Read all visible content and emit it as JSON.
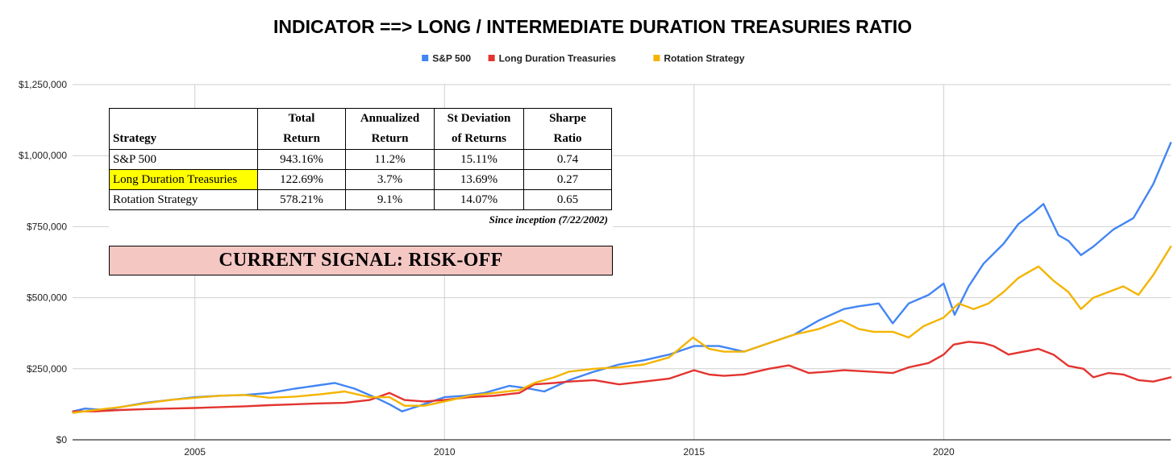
{
  "colors": {
    "sp500": "#4285f4",
    "long_duration": "#e3342f",
    "rotation": "#f4b400",
    "highlight": "#ffff00",
    "signal_bg": "#f4c7c3"
  },
  "chart_data": {
    "type": "line",
    "title": "INDICATOR ==> LONG / INTERMEDIATE DURATION TREASURIES RATIO",
    "xlabel": "",
    "ylabel": "",
    "xlim": [
      2002.55,
      2024.55
    ],
    "ylim": [
      0,
      1250000
    ],
    "x_ticks": [
      2005,
      2010,
      2015,
      2020
    ],
    "x_tick_labels": [
      "2005",
      "2010",
      "2015",
      "2020"
    ],
    "y_ticks": [
      0,
      250000,
      500000,
      750000,
      1000000,
      1250000
    ],
    "y_tick_labels": [
      "$0",
      "$250,000",
      "$500,000",
      "$750,000",
      "$1,000,000",
      "$1,250,000"
    ],
    "legend_position": "top-center",
    "grid": true,
    "series": [
      {
        "name": "S&P 500",
        "color": "#4285f4",
        "x": [
          2002.56,
          2002.8,
          2003.2,
          2003.6,
          2004.0,
          2004.5,
          2005.0,
          2005.5,
          2006.0,
          2006.5,
          2007.0,
          2007.4,
          2007.8,
          2008.2,
          2008.6,
          2008.9,
          2009.15,
          2009.5,
          2010.0,
          2010.4,
          2010.8,
          2011.3,
          2011.7,
          2012.0,
          2012.5,
          2013.0,
          2013.5,
          2014.0,
          2014.5,
          2015.0,
          2015.5,
          2016.0,
          2016.5,
          2017.0,
          2017.5,
          2018.0,
          2018.3,
          2018.7,
          2018.98,
          2019.3,
          2019.7,
          2020.0,
          2020.22,
          2020.5,
          2020.8,
          2021.2,
          2021.5,
          2021.8,
          2022.0,
          2022.3,
          2022.5,
          2022.75,
          2023.0,
          2023.4,
          2023.8,
          2024.2,
          2024.55
        ],
        "values": [
          100000,
          110000,
          105000,
          118000,
          130000,
          140000,
          150000,
          155000,
          158000,
          165000,
          180000,
          190000,
          200000,
          180000,
          150000,
          125000,
          100000,
          120000,
          150000,
          155000,
          165000,
          190000,
          180000,
          170000,
          210000,
          240000,
          265000,
          280000,
          300000,
          330000,
          330000,
          310000,
          340000,
          370000,
          420000,
          460000,
          470000,
          480000,
          410000,
          480000,
          510000,
          550000,
          440000,
          540000,
          620000,
          690000,
          760000,
          800000,
          830000,
          720000,
          700000,
          650000,
          680000,
          740000,
          780000,
          900000,
          1045000
        ]
      },
      {
        "name": "Long Duration Treasuries",
        "color": "#e3342f",
        "x": [
          2002.56,
          2003.0,
          2003.5,
          2004.0,
          2004.5,
          2005.0,
          2005.5,
          2006.0,
          2006.5,
          2007.0,
          2007.5,
          2008.0,
          2008.5,
          2008.9,
          2009.2,
          2009.6,
          2010.0,
          2010.5,
          2011.0,
          2011.5,
          2011.8,
          2012.2,
          2012.5,
          2013.0,
          2013.5,
          2014.0,
          2014.5,
          2015.0,
          2015.3,
          2015.6,
          2016.0,
          2016.5,
          2016.9,
          2017.3,
          2017.7,
          2018.0,
          2018.5,
          2018.98,
          2019.3,
          2019.7,
          2020.0,
          2020.2,
          2020.5,
          2020.8,
          2021.0,
          2021.3,
          2021.6,
          2021.9,
          2022.2,
          2022.5,
          2022.8,
          2023.0,
          2023.3,
          2023.6,
          2023.9,
          2024.2,
          2024.55
        ],
        "values": [
          100000,
          100000,
          105000,
          108000,
          110000,
          112000,
          115000,
          118000,
          122000,
          125000,
          128000,
          130000,
          140000,
          165000,
          140000,
          135000,
          140000,
          150000,
          155000,
          165000,
          195000,
          200000,
          205000,
          210000,
          195000,
          205000,
          215000,
          245000,
          230000,
          225000,
          230000,
          250000,
          262000,
          235000,
          240000,
          245000,
          240000,
          235000,
          255000,
          270000,
          300000,
          335000,
          345000,
          340000,
          330000,
          300000,
          310000,
          320000,
          300000,
          260000,
          250000,
          220000,
          235000,
          230000,
          210000,
          205000,
          220000
        ]
      },
      {
        "name": "Rotation Strategy",
        "color": "#f4b400",
        "x": [
          2002.56,
          2003.0,
          2003.5,
          2004.0,
          2004.5,
          2005.0,
          2005.5,
          2006.0,
          2006.5,
          2007.0,
          2007.5,
          2008.0,
          2008.5,
          2008.9,
          2009.2,
          2009.6,
          2010.0,
          2010.5,
          2011.0,
          2011.5,
          2011.8,
          2012.2,
          2012.5,
          2013.0,
          2013.5,
          2014.0,
          2014.5,
          2014.98,
          2015.3,
          2015.6,
          2016.0,
          2016.5,
          2017.0,
          2017.5,
          2017.95,
          2018.3,
          2018.6,
          2018.98,
          2019.3,
          2019.6,
          2020.0,
          2020.3,
          2020.6,
          2020.9,
          2021.2,
          2021.5,
          2021.9,
          2022.2,
          2022.5,
          2022.75,
          2023.0,
          2023.3,
          2023.6,
          2023.9,
          2024.2,
          2024.55
        ],
        "values": [
          95000,
          105000,
          115000,
          128000,
          140000,
          148000,
          155000,
          158000,
          148000,
          152000,
          160000,
          170000,
          150000,
          150000,
          120000,
          120000,
          135000,
          155000,
          165000,
          175000,
          200000,
          220000,
          240000,
          250000,
          255000,
          265000,
          290000,
          360000,
          320000,
          310000,
          310000,
          340000,
          370000,
          390000,
          420000,
          390000,
          380000,
          380000,
          360000,
          400000,
          430000,
          480000,
          460000,
          480000,
          520000,
          570000,
          610000,
          560000,
          520000,
          460000,
          500000,
          520000,
          540000,
          510000,
          580000,
          680000
        ]
      }
    ]
  },
  "table": {
    "headers": [
      {
        "line1": "",
        "line2": "Strategy"
      },
      {
        "line1": "Total",
        "line2": "Return"
      },
      {
        "line1": "Annualized",
        "line2": "Return"
      },
      {
        "line1": "St Deviation",
        "line2": "of Returns"
      },
      {
        "line1": "Sharpe",
        "line2": "Ratio"
      }
    ],
    "rows": [
      {
        "strategy": "S&P 500",
        "total_return": "943.16%",
        "annualized_return": "11.2%",
        "st_deviation": "15.11%",
        "sharpe": "0.74"
      },
      {
        "strategy": "Long Duration Treasuries",
        "total_return": "122.69%",
        "annualized_return": "3.7%",
        "st_deviation": "13.69%",
        "sharpe": "0.27"
      },
      {
        "strategy": "Rotation Strategy",
        "total_return": "578.21%",
        "annualized_return": "9.1%",
        "st_deviation": "14.07%",
        "sharpe": "0.65"
      }
    ],
    "note": "Since inception (7/22/2002)",
    "signal": "CURRENT SIGNAL: RISK-OFF"
  }
}
